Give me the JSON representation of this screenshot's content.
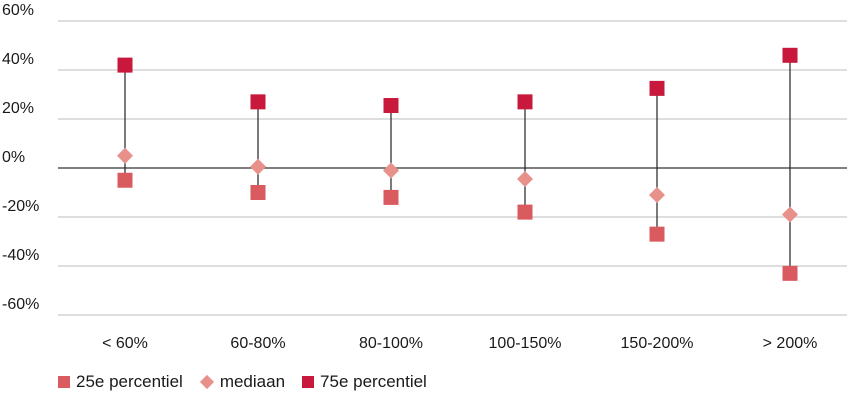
{
  "chart_data": {
    "type": "scatter",
    "categories": [
      "< 60%",
      "60-80%",
      "80-100%",
      "100-150%",
      "150-200%",
      "> 200%"
    ],
    "series": [
      {
        "name": "25e percentiel",
        "marker": "square",
        "color": "#d95a5f",
        "values": [
          -5,
          -10,
          -12,
          -18,
          -27,
          -43
        ]
      },
      {
        "name": "mediaan",
        "marker": "diamond",
        "color": "#e8908a",
        "values": [
          5,
          0.5,
          -1,
          -4.5,
          -11,
          -19
        ]
      },
      {
        "name": "75e percentiel",
        "marker": "square",
        "color": "#c8183c",
        "values": [
          42,
          27,
          25.5,
          27,
          32.5,
          46
        ]
      }
    ],
    "ylim": [
      -60,
      60
    ],
    "yticks": [
      60,
      40,
      20,
      0,
      -20,
      -40,
      -60
    ],
    "ytick_labels": [
      "60%",
      "40%",
      "20%",
      "0%",
      "-20%",
      "-40%",
      "-60%"
    ],
    "grid": true,
    "legend_position": "bottom-left",
    "range_line_color": "#222222",
    "grid_color": "#bdbdbd",
    "zero_line_color": "#333333"
  }
}
